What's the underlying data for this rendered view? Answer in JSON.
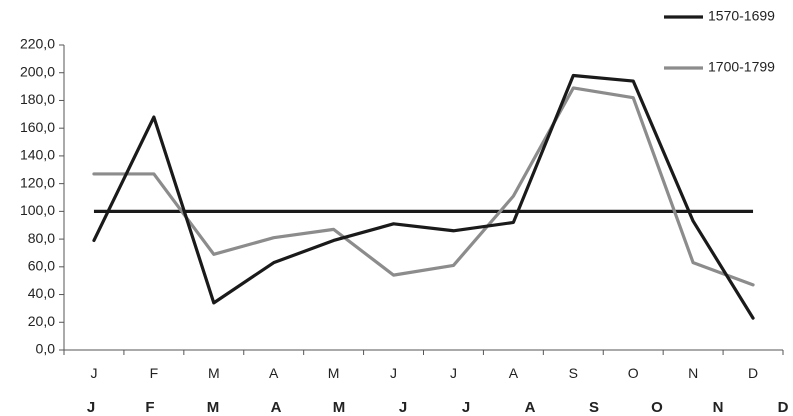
{
  "chart_data": {
    "type": "line",
    "categories": [
      "J",
      "F",
      "M",
      "A",
      "M",
      "J",
      "J",
      "A",
      "S",
      "O",
      "N",
      "D"
    ],
    "second_row_labels": [
      "J",
      "F",
      "M",
      "A",
      "M",
      "J",
      "J",
      "A",
      "S",
      "O",
      "N",
      "D"
    ],
    "y_tick_labels": [
      "0,0",
      "20,0",
      "40,0",
      "60,0",
      "80,0",
      "100,0",
      "120,0",
      "140,0",
      "160,0",
      "180,0",
      "200,0",
      "220,0"
    ],
    "ylim": [
      0,
      220
    ],
    "y_step": 20,
    "title": "",
    "xlabel": "",
    "ylabel": "",
    "grid": false,
    "legend_position": "top-right",
    "series": [
      {
        "name": "1570-1699",
        "color": "#1a1a1a",
        "values": [
          79,
          168,
          34,
          63,
          79,
          91,
          86,
          92,
          198,
          194,
          93,
          23
        ]
      },
      {
        "name": "1700-1799",
        "color": "#8c8c8c",
        "values": [
          127,
          127,
          69,
          81,
          87,
          54,
          61,
          111,
          189,
          182,
          63,
          47
        ]
      }
    ],
    "reference_line": {
      "value": 100,
      "color": "#1a1a1a"
    }
  }
}
